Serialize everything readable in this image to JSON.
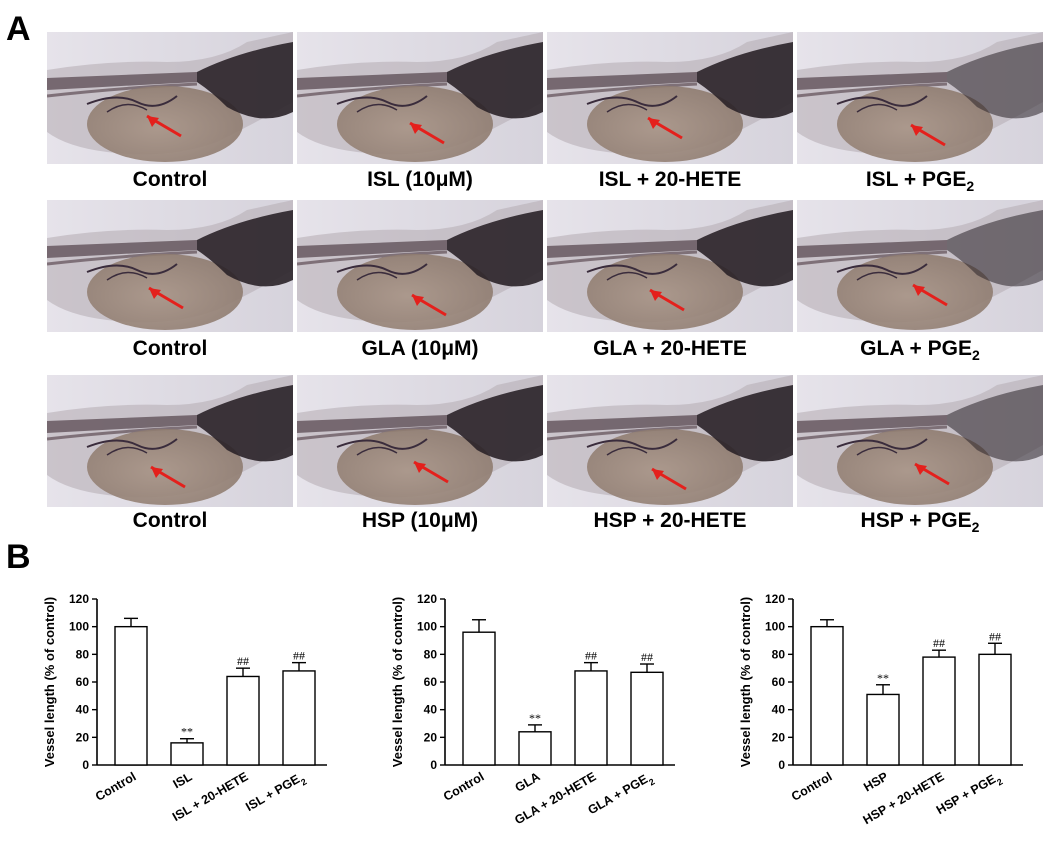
{
  "panel_labels": {
    "a": "A",
    "b": "B"
  },
  "colors": {
    "arrow": "#e4201c",
    "background": "#ffffff",
    "axis": "#000000",
    "bar_fill": "#ffffff",
    "embryo_body": "#5a4a52",
    "yolk": "#8d7a6e"
  },
  "image_grid": {
    "rows": [
      {
        "captions": [
          {
            "text": "Control",
            "sub": ""
          },
          {
            "text": "ISL (10μM)",
            "sub": ""
          },
          {
            "text": "ISL + 20-HETE",
            "sub": ""
          },
          {
            "text": "ISL + PGE",
            "sub": "2"
          }
        ]
      },
      {
        "captions": [
          {
            "text": "Control",
            "sub": ""
          },
          {
            "text": "GLA (10μM)",
            "sub": ""
          },
          {
            "text": "GLA + 20-HETE",
            "sub": ""
          },
          {
            "text": "GLA + PGE",
            "sub": "2"
          }
        ]
      },
      {
        "captions": [
          {
            "text": "Control",
            "sub": ""
          },
          {
            "text": "HSP (10μM)",
            "sub": ""
          },
          {
            "text": "HSP + 20-HETE",
            "sub": ""
          },
          {
            "text": "HSP + PGE",
            "sub": "2"
          }
        ]
      }
    ]
  },
  "chart_data": [
    {
      "type": "bar",
      "ylabel": "Vessel length (% of control)",
      "yticks": [
        0,
        20,
        40,
        60,
        80,
        100,
        120
      ],
      "ylim": [
        0,
        120
      ],
      "categories": [
        {
          "text": "Control",
          "sub": ""
        },
        {
          "text": "ISL",
          "sub": ""
        },
        {
          "text": "ISL + 20-HETE",
          "sub": ""
        },
        {
          "text": "ISL + PGE",
          "sub": "2"
        }
      ],
      "values": [
        100,
        16,
        64,
        68
      ],
      "errors": [
        6,
        3,
        6,
        6
      ],
      "annotations": [
        "",
        "**",
        "##",
        "##"
      ]
    },
    {
      "type": "bar",
      "ylabel": "Vessel length (% of control)",
      "yticks": [
        0,
        20,
        40,
        60,
        80,
        100,
        120
      ],
      "ylim": [
        0,
        120
      ],
      "categories": [
        {
          "text": "Control",
          "sub": ""
        },
        {
          "text": "GLA",
          "sub": ""
        },
        {
          "text": "GLA + 20-HETE",
          "sub": ""
        },
        {
          "text": "GLA + PGE",
          "sub": "2"
        }
      ],
      "values": [
        96,
        24,
        68,
        67
      ],
      "errors": [
        9,
        5,
        6,
        6
      ],
      "annotations": [
        "",
        "**",
        "##",
        "##"
      ]
    },
    {
      "type": "bar",
      "ylabel": "Vessel length (% of control)",
      "yticks": [
        0,
        20,
        40,
        60,
        80,
        100,
        120
      ],
      "ylim": [
        0,
        120
      ],
      "categories": [
        {
          "text": "Control",
          "sub": ""
        },
        {
          "text": "HSP",
          "sub": ""
        },
        {
          "text": "HSP + 20-HETE",
          "sub": ""
        },
        {
          "text": "HSP + PGE",
          "sub": "2"
        }
      ],
      "values": [
        100,
        51,
        78,
        80
      ],
      "errors": [
        5,
        7,
        5,
        8
      ],
      "annotations": [
        "",
        "**",
        "##",
        "##"
      ]
    }
  ]
}
